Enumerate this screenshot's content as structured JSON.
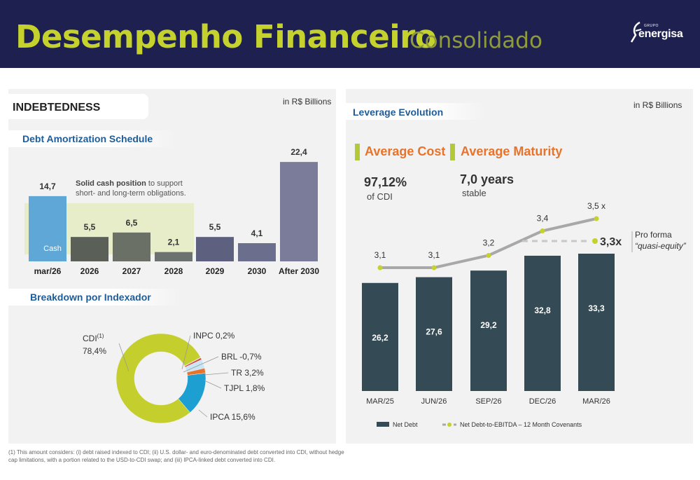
{
  "header": {
    "title": "Desempenho Financeiro",
    "subtitle": "Consolidado",
    "logo_group": "GRUPO",
    "logo_name": "energisa"
  },
  "left": {
    "section_title": "INDEBTEDNESS",
    "units": "in R$ Billions",
    "amortization_title": "Debt Amortization Schedule",
    "cash_note_bold": "Solid cash position",
    "cash_note_rest": " to support short- and long-term obligations.",
    "cash_label": "Cash",
    "breakdown_title": "Breakdown por Indexador"
  },
  "right": {
    "section_title": "Leverage Evolution",
    "units": "in R$ Billions",
    "avg_cost_title": "Average Cost",
    "avg_cost_value": "97,12%",
    "avg_cost_sub": "of CDI",
    "avg_maturity_title": "Average Maturity",
    "avg_maturity_value": "7,0 years",
    "avg_maturity_sub": "stable",
    "pro_forma_value": "3,3x",
    "pro_forma_label1": "Pro forma",
    "pro_forma_label2": "“quasi-equity”"
  },
  "footnote": "(1) This amount considers: (i) debt raised indexed to CDI; (ii) U.S. dollar- and euro-denominated debt converted into CDI, without hedge cap limitations, with a portion related to the USD-to-CDI swap; and (iii) IPCA-linked debt converted into CDI.",
  "colors": {
    "header_bg": "#1e2150",
    "accent_green": "#c5d12c",
    "accent_orange": "#e8732a",
    "bar_dark": "#344a54",
    "section_blue": "#1e5c99"
  },
  "chart_data": [
    {
      "type": "bar",
      "title": "Debt Amortization Schedule",
      "categories": [
        "mar/26",
        "2026",
        "2027",
        "2028",
        "2029",
        "2030",
        "After 2030"
      ],
      "values": [
        14.7,
        5.5,
        6.5,
        2.1,
        5.5,
        4.1,
        22.4
      ],
      "value_labels": [
        "14,7",
        "5,5",
        "6,5",
        "2,1",
        "5,5",
        "4,1",
        "22,4"
      ],
      "bar_colors": [
        "#5fa7d6",
        "#5a5f58",
        "#6b7066",
        "#6c7270",
        "#5e6080",
        "#6c6e8e",
        "#7a7c99"
      ],
      "ylim": [
        0,
        24
      ]
    },
    {
      "type": "pie",
      "title": "Breakdown por Indexador",
      "labels": [
        "CDI",
        "INPC",
        "BRL",
        "TR",
        "TJPL",
        "IPCA"
      ],
      "values": [
        78.4,
        0.2,
        -0.7,
        3.2,
        1.8,
        15.6
      ],
      "display_labels": [
        "78,4%",
        "INPC 0,2%",
        "BRL -0,7%",
        "TR 3,2%",
        "TJPL 1,8%",
        "IPCA 15,6%"
      ],
      "footnote_marker": "(1)",
      "colors": [
        "#c4cf2d",
        "#c8c8c8",
        "#d94a46",
        "#c9e6f7",
        "#e8732a",
        "#1e9fd1"
      ]
    },
    {
      "type": "bar",
      "title": "Leverage Evolution",
      "categories": [
        "MAR/25",
        "JUN/26",
        "SEP/26",
        "DEC/26",
        "MAR/26"
      ],
      "series": [
        {
          "name": "Net Debt",
          "values": [
            26.2,
            27.6,
            29.2,
            32.8,
            33.3
          ],
          "labels": [
            "26,2",
            "27,6",
            "29,2",
            "32,8",
            "33,3"
          ]
        },
        {
          "name": "Net Debt-to-EBITDA – 12 Month Covenants",
          "values": [
            3.1,
            3.1,
            3.2,
            3.4,
            3.5
          ],
          "labels": [
            "3,1",
            "3,1",
            "3,2",
            "3,4",
            "3,5 x"
          ]
        }
      ],
      "legend_position": "bottom"
    }
  ]
}
